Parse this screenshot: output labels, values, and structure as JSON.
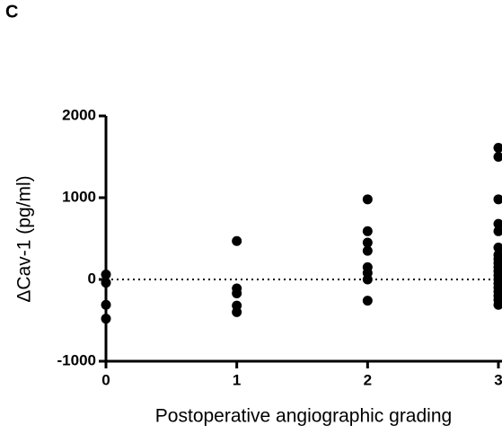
{
  "chart_data": {
    "type": "scatter",
    "panel_label": "C",
    "x_label": "Postoperative angiographic grading",
    "y_label": "ΔCav-1  (pg/ml)",
    "x": [
      0,
      0,
      0,
      0,
      1,
      1,
      1,
      1,
      1,
      2,
      2,
      2,
      2,
      2,
      2,
      2,
      2,
      3,
      3,
      3,
      3,
      3,
      3,
      3,
      3,
      3,
      3,
      3,
      3,
      3,
      3,
      3,
      3,
      3,
      3,
      3
    ],
    "values": [
      60,
      -40,
      -310,
      -480,
      470,
      -110,
      -170,
      -320,
      -400,
      980,
      590,
      450,
      350,
      150,
      80,
      0,
      -260,
      1610,
      1500,
      980,
      680,
      590,
      390,
      300,
      250,
      200,
      150,
      100,
      50,
      0,
      -50,
      -100,
      -150,
      -200,
      -250,
      -310
    ],
    "color": "#000000",
    "xlim": [
      0,
      3
    ],
    "xticks": [
      0,
      1,
      2,
      3
    ],
    "ylim": [
      -1000,
      2000
    ],
    "yticks": [
      -1000,
      0,
      1000,
      2000
    ],
    "reference_line": 0
  }
}
